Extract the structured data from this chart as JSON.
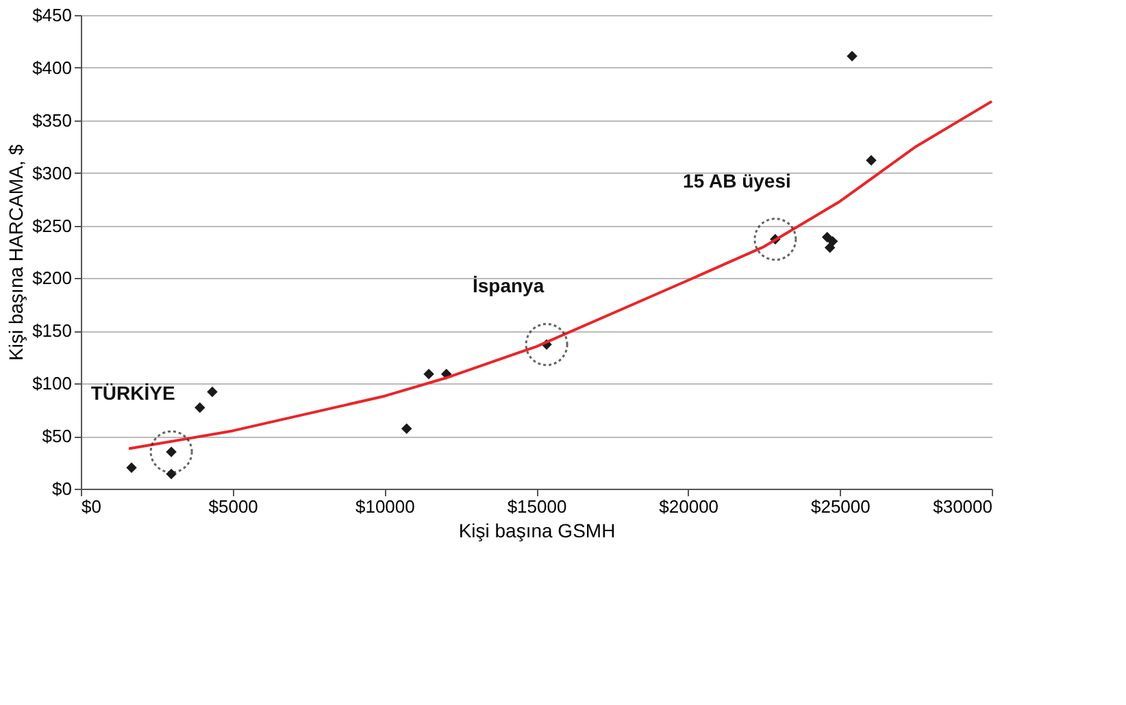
{
  "chart_data": {
    "type": "scatter",
    "xlabel": "Kişi başına GSMH",
    "ylabel": "Kişi başına HARCAMA, $",
    "xlim": [
      0,
      30000
    ],
    "ylim": [
      0,
      450
    ],
    "xticks": [
      {
        "value": 0,
        "label": "$0"
      },
      {
        "value": 5000,
        "label": "$5000"
      },
      {
        "value": 10000,
        "label": "$10000"
      },
      {
        "value": 15000,
        "label": "$15000"
      },
      {
        "value": 20000,
        "label": "$20000"
      },
      {
        "value": 25000,
        "label": "$25000"
      },
      {
        "value": 30000,
        "label": "$30000"
      }
    ],
    "yticks": [
      {
        "value": 0,
        "label": "$0"
      },
      {
        "value": 50,
        "label": "$50"
      },
      {
        "value": 100,
        "label": "$100"
      },
      {
        "value": 150,
        "label": "$150"
      },
      {
        "value": 200,
        "label": "$200"
      },
      {
        "value": 250,
        "label": "$250"
      },
      {
        "value": 300,
        "label": "$300"
      },
      {
        "value": 350,
        "label": "$350"
      },
      {
        "value": 400,
        "label": "$400"
      },
      {
        "value": 450,
        "label": "$450"
      }
    ],
    "grid": "y",
    "marker": "diamond",
    "series": [
      {
        "color": "#1a1a1a",
        "x": [
          1670,
          2980,
          2980,
          3920,
          4330,
          10730,
          11460,
          12040,
          15340,
          22870,
          24580,
          24670,
          24760,
          25400,
          26030
        ],
        "values": [
          20,
          35,
          14,
          77,
          92,
          57,
          109,
          109,
          137,
          237,
          239,
          229,
          235,
          411,
          312
        ]
      },
      {
        "type": "line",
        "color": "#e8262a",
        "line_style": "solid",
        "marker": "none",
        "x": [
          1580,
          3000,
          5000,
          10000,
          12000,
          15000,
          20000,
          22500,
          25000,
          27500,
          30000
        ],
        "values": [
          38,
          45,
          55,
          88,
          105,
          135,
          198,
          230,
          273,
          325,
          368
        ]
      }
    ],
    "annotations": [
      {
        "text": "TÜRKİYE",
        "x": 2980,
        "y": 35
      },
      {
        "text": "İspanya",
        "x": 15340,
        "y": 137
      },
      {
        "text": "15 AB üyesi",
        "x": 22870,
        "y": 237
      }
    ]
  }
}
